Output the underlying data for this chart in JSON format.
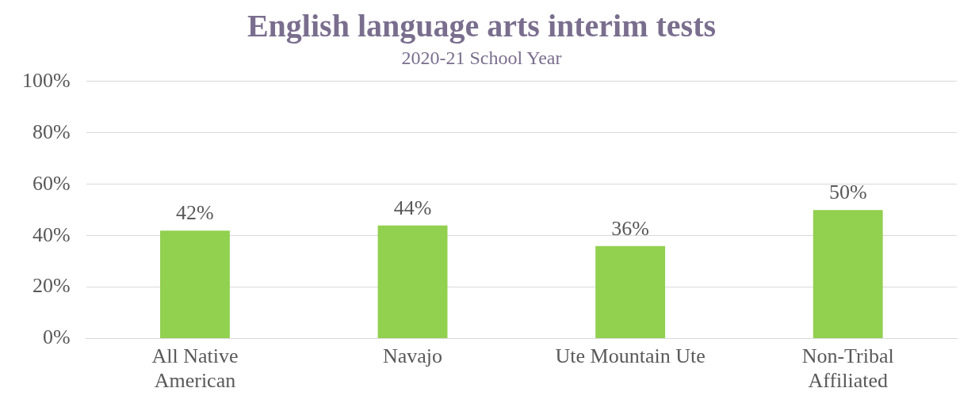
{
  "chart_data": {
    "type": "bar",
    "title": "English language arts interim tests",
    "subtitle": "2020-21 School Year",
    "categories": [
      "All Native American",
      "Navajo",
      "Ute Mountain Ute",
      "Non-Tribal Affiliated"
    ],
    "values": [
      42,
      44,
      36,
      50
    ],
    "color": "#92d050",
    "value_labels": [
      "42%",
      "44%",
      "36%",
      "50%"
    ],
    "ylim": [
      0,
      100
    ],
    "yticks": [
      {
        "value": 0,
        "label": "0%"
      },
      {
        "value": 20,
        "label": "20%"
      },
      {
        "value": 40,
        "label": "40%"
      },
      {
        "value": 60,
        "label": "60%"
      },
      {
        "value": 80,
        "label": "80%"
      },
      {
        "value": 100,
        "label": "100%"
      }
    ],
    "grid": "y",
    "legend": false
  }
}
